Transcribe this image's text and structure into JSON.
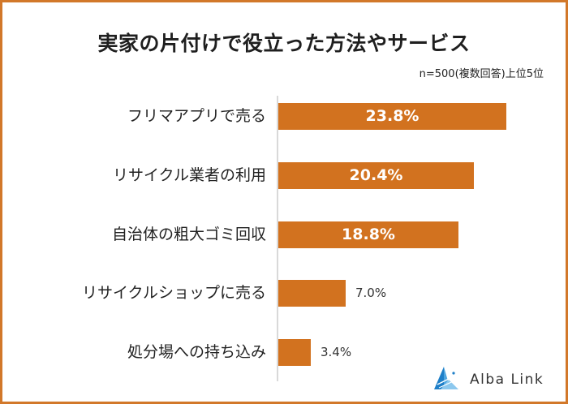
{
  "title": "実家の片付けで役立った方法やサービス",
  "note": "n=500(複数回答)上位5位",
  "colors": {
    "bar": "#D2721F",
    "frame": "#D2782A",
    "axis": "#d9d9d9",
    "logo_blue": "#1E7FC8"
  },
  "bars": [
    {
      "label": "フリマアプリで売る",
      "value_label": "23.8%",
      "value": 23.8
    },
    {
      "label": "リサイクル業者の利用",
      "value_label": "20.4%",
      "value": 20.4
    },
    {
      "label": "自治体の粗大ゴミ回収",
      "value_label": "18.8%",
      "value": 18.8
    },
    {
      "label": "リサイクルショップに売る",
      "value_label": "7.0%",
      "value": 7.0
    },
    {
      "label": "処分場への持ち込み",
      "value_label": "3.4%",
      "value": 3.4
    }
  ],
  "logo": {
    "icon": "alba-link-triangle-icon",
    "text": "Alba Link"
  },
  "chart_data": {
    "type": "bar",
    "orientation": "horizontal",
    "title": "実家の片付けで役立った方法やサービス",
    "subtitle": "n=500(複数回答)上位5位",
    "categories": [
      "フリマアプリで売る",
      "リサイクル業者の利用",
      "自治体の粗大ゴミ回収",
      "リサイクルショップに売る",
      "処分場への持ち込み"
    ],
    "values": [
      23.8,
      20.4,
      18.8,
      7.0,
      3.4
    ],
    "unit": "%",
    "xlabel": "",
    "ylabel": "",
    "grid": false,
    "legend": null,
    "data_labels": [
      "23.8%",
      "20.4%",
      "18.8%",
      "7.0%",
      "3.4%"
    ]
  }
}
